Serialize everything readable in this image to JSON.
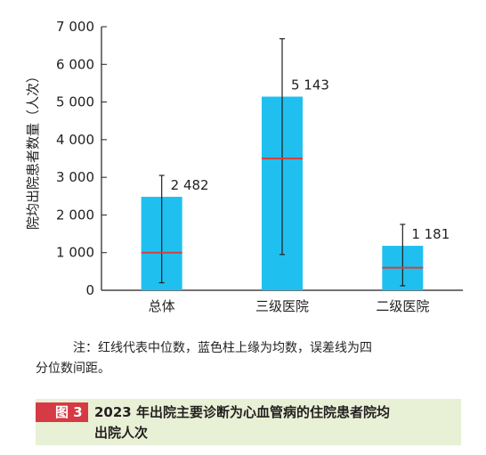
{
  "chart_data": {
    "type": "bar",
    "categories": [
      "总体",
      "三级医院",
      "二级医院"
    ],
    "values": [
      2482,
      5143,
      1181
    ],
    "medians": [
      1000,
      3500,
      600
    ],
    "error_low": [
      200,
      950,
      120
    ],
    "error_high": [
      3050,
      6680,
      1750
    ],
    "value_labels": [
      "2 482",
      "5 143",
      "1 181"
    ],
    "ylabel": "院均出院患者数量（人次）",
    "ylim": [
      0,
      7000
    ],
    "yticks": [
      0,
      1000,
      2000,
      3000,
      4000,
      5000,
      6000,
      7000
    ],
    "ytick_labels": [
      "0",
      "1 000",
      "2 000",
      "3 000",
      "4 000",
      "5 000",
      "6 000",
      "7 000"
    ],
    "grid": false,
    "colors": {
      "bar": "#1fc0f0",
      "median": "#d6403a",
      "error": "#231f20",
      "axis": "#231f20"
    }
  },
  "note": {
    "line1": "注：红线代表中位数，蓝色柱上缘为均数，误差线为四",
    "line2": "分位数间距。"
  },
  "caption": {
    "label": "图 3",
    "title_line1": "2023 年出院主要诊断为心血管病的住院患者院均",
    "title_line2": "出院人次",
    "label_bg": "#d63a44",
    "box_bg": "#e8f0d5"
  }
}
